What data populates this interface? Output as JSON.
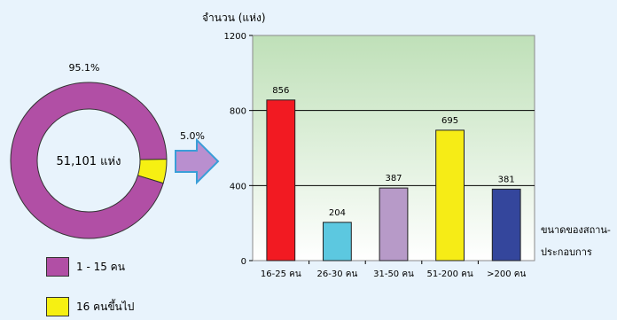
{
  "colors": {
    "background": "#e8f3fc",
    "donut_main": "#b14fa5",
    "donut_small": "#f6f012",
    "arrow": "#b98fcf",
    "arrow_border": "#3a9ed8"
  },
  "chart_data": [
    {
      "type": "pie",
      "subtype": "donut",
      "center_label": "51,101 แห่ง",
      "slices": [
        {
          "name": "1 - 15 คน",
          "value": 95.1,
          "label": "95.1%",
          "color": "#b14fa5"
        },
        {
          "name": "16 คนขึ้นไป",
          "value": 5.0,
          "label": "5.0%",
          "color": "#f6f012"
        }
      ],
      "legend": {
        "placement": "bottom-left",
        "entries": [
          {
            "label": "1 - 15 คน",
            "color": "#b14fa5"
          },
          {
            "label": "16 คนขึ้นไป",
            "color": "#f6f012"
          }
        ]
      }
    },
    {
      "type": "bar",
      "ylabel": "จำนวน (แห่ง)",
      "xlabel": [
        "ขนาดของสถาน-",
        "ประกอบการ"
      ],
      "categories": [
        "16-25 คน",
        "26-30 คน",
        "31-50 คน",
        "51-200 คน",
        ">200 คน"
      ],
      "values": [
        856,
        204,
        387,
        695,
        381
      ],
      "data_labels": [
        "856",
        "204",
        "387",
        "695",
        "381"
      ],
      "colors": [
        "#f21a22",
        "#5cc8e0",
        "#b79ac8",
        "#f6ec16",
        "#34469c"
      ],
      "ylim": [
        0,
        1200
      ],
      "yticks": [
        0,
        400,
        800,
        1200
      ],
      "ytick_labels": [
        "0",
        "400",
        "800",
        "1200"
      ],
      "grid": true
    }
  ]
}
